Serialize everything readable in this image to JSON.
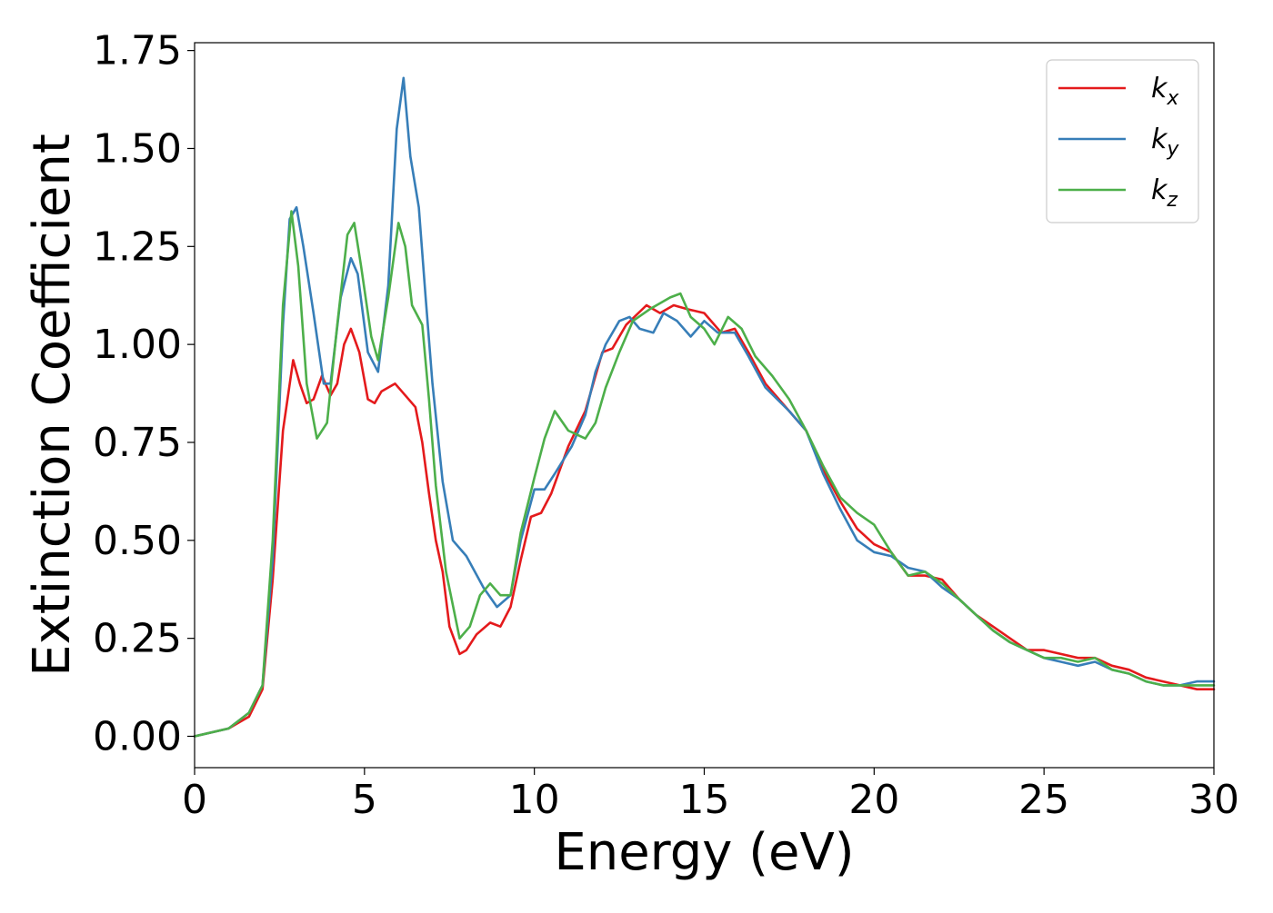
{
  "chart_data": {
    "type": "line",
    "xlabel": "Energy (eV)",
    "ylabel": "Extinction Coefficient",
    "xlim": [
      0,
      30
    ],
    "ylim": [
      -0.08,
      1.77
    ],
    "xticks": [
      "0",
      "5",
      "10",
      "15",
      "20",
      "25",
      "30"
    ],
    "yticks": [
      "0.00",
      "0.25",
      "0.50",
      "0.75",
      "1.00",
      "1.25",
      "1.50",
      "1.75"
    ],
    "grid": false,
    "legend_position": "top-right",
    "series": [
      {
        "name": "k",
        "subscript": "x",
        "color": "#e41a1c",
        "points": [
          [
            0,
            0
          ],
          [
            1,
            0.02
          ],
          [
            1.6,
            0.05
          ],
          [
            2,
            0.12
          ],
          [
            2.3,
            0.4
          ],
          [
            2.6,
            0.78
          ],
          [
            2.9,
            0.96
          ],
          [
            3.1,
            0.9
          ],
          [
            3.3,
            0.85
          ],
          [
            3.5,
            0.86
          ],
          [
            3.75,
            0.92
          ],
          [
            4,
            0.87
          ],
          [
            4.2,
            0.9
          ],
          [
            4.4,
            1
          ],
          [
            4.6,
            1.04
          ],
          [
            4.85,
            0.98
          ],
          [
            5.1,
            0.86
          ],
          [
            5.3,
            0.85
          ],
          [
            5.5,
            0.88
          ],
          [
            5.9,
            0.9
          ],
          [
            6.2,
            0.87
          ],
          [
            6.5,
            0.84
          ],
          [
            6.7,
            0.75
          ],
          [
            6.9,
            0.62
          ],
          [
            7.1,
            0.5
          ],
          [
            7.3,
            0.42
          ],
          [
            7.5,
            0.28
          ],
          [
            7.8,
            0.21
          ],
          [
            8,
            0.22
          ],
          [
            8.3,
            0.26
          ],
          [
            8.7,
            0.29
          ],
          [
            9,
            0.28
          ],
          [
            9.3,
            0.33
          ],
          [
            9.6,
            0.45
          ],
          [
            9.9,
            0.56
          ],
          [
            10.2,
            0.57
          ],
          [
            10.5,
            0.62
          ],
          [
            11,
            0.74
          ],
          [
            11.5,
            0.83
          ],
          [
            12,
            0.98
          ],
          [
            12.3,
            0.99
          ],
          [
            12.7,
            1.05
          ],
          [
            13.3,
            1.1
          ],
          [
            13.7,
            1.08
          ],
          [
            14.1,
            1.1
          ],
          [
            14.5,
            1.09
          ],
          [
            15,
            1.08
          ],
          [
            15.5,
            1.03
          ],
          [
            15.9,
            1.04
          ],
          [
            16.3,
            0.98
          ],
          [
            16.8,
            0.9
          ],
          [
            17.5,
            0.83
          ],
          [
            18,
            0.78
          ],
          [
            18.5,
            0.68
          ],
          [
            19,
            0.6
          ],
          [
            19.5,
            0.53
          ],
          [
            20,
            0.49
          ],
          [
            20.5,
            0.47
          ],
          [
            21,
            0.41
          ],
          [
            21.5,
            0.41
          ],
          [
            22,
            0.4
          ],
          [
            22.5,
            0.35
          ],
          [
            23,
            0.31
          ],
          [
            23.5,
            0.28
          ],
          [
            24,
            0.25
          ],
          [
            24.5,
            0.22
          ],
          [
            25,
            0.22
          ],
          [
            25.5,
            0.21
          ],
          [
            26,
            0.2
          ],
          [
            26.5,
            0.2
          ],
          [
            27,
            0.18
          ],
          [
            27.5,
            0.17
          ],
          [
            28,
            0.15
          ],
          [
            28.5,
            0.14
          ],
          [
            29,
            0.13
          ],
          [
            29.5,
            0.12
          ],
          [
            30,
            0.12
          ]
        ]
      },
      {
        "name": "k",
        "subscript": "y",
        "color": "#377eb8",
        "points": [
          [
            0,
            0
          ],
          [
            1,
            0.02
          ],
          [
            1.6,
            0.06
          ],
          [
            2,
            0.13
          ],
          [
            2.3,
            0.45
          ],
          [
            2.6,
            1.05
          ],
          [
            2.8,
            1.32
          ],
          [
            3,
            1.35
          ],
          [
            3.2,
            1.25
          ],
          [
            3.5,
            1.08
          ],
          [
            3.8,
            0.9
          ],
          [
            4,
            0.9
          ],
          [
            4.3,
            1.12
          ],
          [
            4.6,
            1.22
          ],
          [
            4.8,
            1.18
          ],
          [
            5.1,
            0.98
          ],
          [
            5.4,
            0.93
          ],
          [
            5.7,
            1.15
          ],
          [
            5.95,
            1.55
          ],
          [
            6.15,
            1.68
          ],
          [
            6.35,
            1.48
          ],
          [
            6.6,
            1.35
          ],
          [
            6.8,
            1.12
          ],
          [
            7,
            0.9
          ],
          [
            7.3,
            0.65
          ],
          [
            7.6,
            0.5
          ],
          [
            8,
            0.46
          ],
          [
            8.5,
            0.38
          ],
          [
            8.9,
            0.33
          ],
          [
            9.3,
            0.36
          ],
          [
            9.6,
            0.5
          ],
          [
            10,
            0.63
          ],
          [
            10.3,
            0.63
          ],
          [
            10.6,
            0.67
          ],
          [
            11.1,
            0.74
          ],
          [
            11.5,
            0.82
          ],
          [
            11.8,
            0.93
          ],
          [
            12.1,
            1
          ],
          [
            12.5,
            1.06
          ],
          [
            12.8,
            1.07
          ],
          [
            13.1,
            1.04
          ],
          [
            13.5,
            1.03
          ],
          [
            13.8,
            1.08
          ],
          [
            14.2,
            1.06
          ],
          [
            14.6,
            1.02
          ],
          [
            15,
            1.06
          ],
          [
            15.4,
            1.03
          ],
          [
            15.9,
            1.03
          ],
          [
            16.3,
            0.97
          ],
          [
            16.8,
            0.89
          ],
          [
            17.5,
            0.83
          ],
          [
            18,
            0.78
          ],
          [
            18.5,
            0.67
          ],
          [
            19,
            0.58
          ],
          [
            19.5,
            0.5
          ],
          [
            20,
            0.47
          ],
          [
            20.5,
            0.46
          ],
          [
            21,
            0.43
          ],
          [
            21.5,
            0.42
          ],
          [
            22,
            0.38
          ],
          [
            22.5,
            0.35
          ],
          [
            23,
            0.31
          ],
          [
            23.5,
            0.27
          ],
          [
            24,
            0.24
          ],
          [
            24.5,
            0.22
          ],
          [
            25,
            0.2
          ],
          [
            25.5,
            0.19
          ],
          [
            26,
            0.18
          ],
          [
            26.5,
            0.19
          ],
          [
            27,
            0.17
          ],
          [
            27.5,
            0.16
          ],
          [
            28,
            0.14
          ],
          [
            28.5,
            0.13
          ],
          [
            29,
            0.13
          ],
          [
            29.5,
            0.14
          ],
          [
            30,
            0.14
          ]
        ]
      },
      {
        "name": "k",
        "subscript": "z",
        "color": "#4daf4a",
        "points": [
          [
            0,
            0
          ],
          [
            1,
            0.02
          ],
          [
            1.6,
            0.06
          ],
          [
            2,
            0.13
          ],
          [
            2.3,
            0.5
          ],
          [
            2.6,
            1.1
          ],
          [
            2.85,
            1.34
          ],
          [
            3.05,
            1.2
          ],
          [
            3.3,
            0.9
          ],
          [
            3.6,
            0.76
          ],
          [
            3.9,
            0.8
          ],
          [
            4.2,
            1.05
          ],
          [
            4.5,
            1.28
          ],
          [
            4.7,
            1.31
          ],
          [
            4.9,
            1.2
          ],
          [
            5.2,
            1.02
          ],
          [
            5.4,
            0.96
          ],
          [
            5.7,
            1.12
          ],
          [
            6,
            1.31
          ],
          [
            6.2,
            1.25
          ],
          [
            6.4,
            1.1
          ],
          [
            6.7,
            1.05
          ],
          [
            6.9,
            0.86
          ],
          [
            7.1,
            0.64
          ],
          [
            7.4,
            0.42
          ],
          [
            7.8,
            0.25
          ],
          [
            8.1,
            0.28
          ],
          [
            8.4,
            0.36
          ],
          [
            8.7,
            0.39
          ],
          [
            9,
            0.36
          ],
          [
            9.3,
            0.36
          ],
          [
            9.6,
            0.52
          ],
          [
            10,
            0.66
          ],
          [
            10.3,
            0.76
          ],
          [
            10.6,
            0.83
          ],
          [
            11,
            0.78
          ],
          [
            11.5,
            0.76
          ],
          [
            11.8,
            0.8
          ],
          [
            12.1,
            0.89
          ],
          [
            12.5,
            0.98
          ],
          [
            12.9,
            1.06
          ],
          [
            13.4,
            1.09
          ],
          [
            14,
            1.12
          ],
          [
            14.3,
            1.13
          ],
          [
            14.6,
            1.07
          ],
          [
            15,
            1.04
          ],
          [
            15.3,
            1
          ],
          [
            15.7,
            1.07
          ],
          [
            16.1,
            1.04
          ],
          [
            16.5,
            0.97
          ],
          [
            17,
            0.92
          ],
          [
            17.5,
            0.86
          ],
          [
            18,
            0.78
          ],
          [
            18.5,
            0.69
          ],
          [
            19,
            0.61
          ],
          [
            19.5,
            0.57
          ],
          [
            20,
            0.54
          ],
          [
            20.5,
            0.47
          ],
          [
            21,
            0.41
          ],
          [
            21.5,
            0.42
          ],
          [
            22,
            0.39
          ],
          [
            22.5,
            0.35
          ],
          [
            23,
            0.31
          ],
          [
            23.5,
            0.27
          ],
          [
            24,
            0.24
          ],
          [
            24.5,
            0.22
          ],
          [
            25,
            0.2
          ],
          [
            25.5,
            0.2
          ],
          [
            26,
            0.19
          ],
          [
            26.5,
            0.2
          ],
          [
            27,
            0.17
          ],
          [
            27.5,
            0.16
          ],
          [
            28,
            0.14
          ],
          [
            28.5,
            0.13
          ],
          [
            29,
            0.13
          ],
          [
            29.5,
            0.13
          ],
          [
            30,
            0.13
          ]
        ]
      }
    ]
  }
}
